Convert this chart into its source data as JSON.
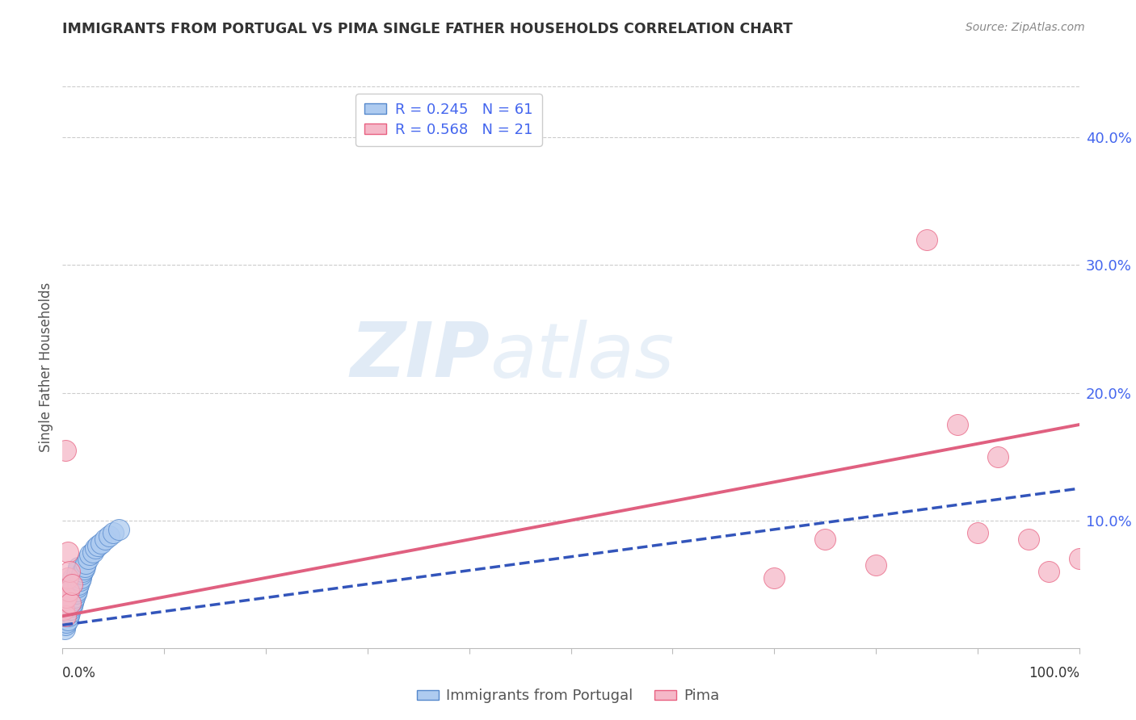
{
  "title": "IMMIGRANTS FROM PORTUGAL VS PIMA SINGLE FATHER HOUSEHOLDS CORRELATION CHART",
  "source": "Source: ZipAtlas.com",
  "ylabel": "Single Father Households",
  "legend_blue_label": "Immigrants from Portugal",
  "legend_pink_label": "Pima",
  "legend_blue_r": "R = 0.245",
  "legend_blue_n": "N = 61",
  "legend_pink_r": "R = 0.568",
  "legend_pink_n": "N = 21",
  "blue_color": "#aecbf0",
  "pink_color": "#f5b8c8",
  "blue_edge_color": "#5588cc",
  "pink_edge_color": "#e86080",
  "blue_line_color": "#3355bb",
  "pink_line_color": "#e06080",
  "watermark_zip": "ZIP",
  "watermark_atlas": "atlas",
  "blue_scatter_x": [
    0.001,
    0.001,
    0.001,
    0.002,
    0.002,
    0.002,
    0.002,
    0.003,
    0.003,
    0.003,
    0.003,
    0.004,
    0.004,
    0.004,
    0.005,
    0.005,
    0.005,
    0.005,
    0.006,
    0.006,
    0.006,
    0.007,
    0.007,
    0.007,
    0.008,
    0.008,
    0.008,
    0.009,
    0.009,
    0.01,
    0.01,
    0.01,
    0.011,
    0.011,
    0.012,
    0.012,
    0.013,
    0.013,
    0.014,
    0.014,
    0.015,
    0.015,
    0.016,
    0.016,
    0.017,
    0.018,
    0.019,
    0.02,
    0.021,
    0.022,
    0.023,
    0.025,
    0.027,
    0.03,
    0.032,
    0.035,
    0.038,
    0.042,
    0.046,
    0.05,
    0.055
  ],
  "blue_scatter_y": [
    0.02,
    0.025,
    0.03,
    0.015,
    0.022,
    0.028,
    0.035,
    0.018,
    0.025,
    0.032,
    0.04,
    0.02,
    0.028,
    0.036,
    0.022,
    0.03,
    0.038,
    0.045,
    0.025,
    0.033,
    0.042,
    0.028,
    0.037,
    0.046,
    0.03,
    0.04,
    0.05,
    0.033,
    0.043,
    0.035,
    0.045,
    0.055,
    0.038,
    0.048,
    0.04,
    0.052,
    0.043,
    0.055,
    0.045,
    0.058,
    0.048,
    0.06,
    0.05,
    0.063,
    0.053,
    0.055,
    0.058,
    0.06,
    0.062,
    0.064,
    0.066,
    0.07,
    0.073,
    0.075,
    0.078,
    0.08,
    0.082,
    0.085,
    0.088,
    0.09,
    0.093
  ],
  "pink_scatter_x": [
    0.001,
    0.002,
    0.003,
    0.003,
    0.004,
    0.005,
    0.005,
    0.006,
    0.007,
    0.008,
    0.009,
    0.7,
    0.75,
    0.8,
    0.85,
    0.88,
    0.9,
    0.92,
    0.95,
    0.97,
    1.0
  ],
  "pink_scatter_y": [
    0.03,
    0.038,
    0.025,
    0.155,
    0.04,
    0.055,
    0.075,
    0.045,
    0.06,
    0.035,
    0.05,
    0.055,
    0.085,
    0.065,
    0.32,
    0.175,
    0.09,
    0.15,
    0.085,
    0.06,
    0.07
  ],
  "blue_line_x": [
    0.0,
    1.0
  ],
  "blue_line_y": [
    0.018,
    0.125
  ],
  "pink_line_x": [
    0.0,
    1.0
  ],
  "pink_line_y": [
    0.025,
    0.175
  ],
  "xlim": [
    0.0,
    1.0
  ],
  "ylim": [
    0.0,
    0.44
  ],
  "yticks": [
    0.0,
    0.1,
    0.2,
    0.3,
    0.4
  ],
  "ytick_labels": [
    "",
    "10.0%",
    "20.0%",
    "30.0%",
    "40.0%"
  ],
  "xtick_positions": [
    0.0,
    0.1,
    0.2,
    0.3,
    0.4,
    0.5,
    0.6,
    0.7,
    0.8,
    0.9,
    1.0
  ],
  "background_color": "#ffffff",
  "grid_color": "#cccccc",
  "legend_color": "#4466ee"
}
